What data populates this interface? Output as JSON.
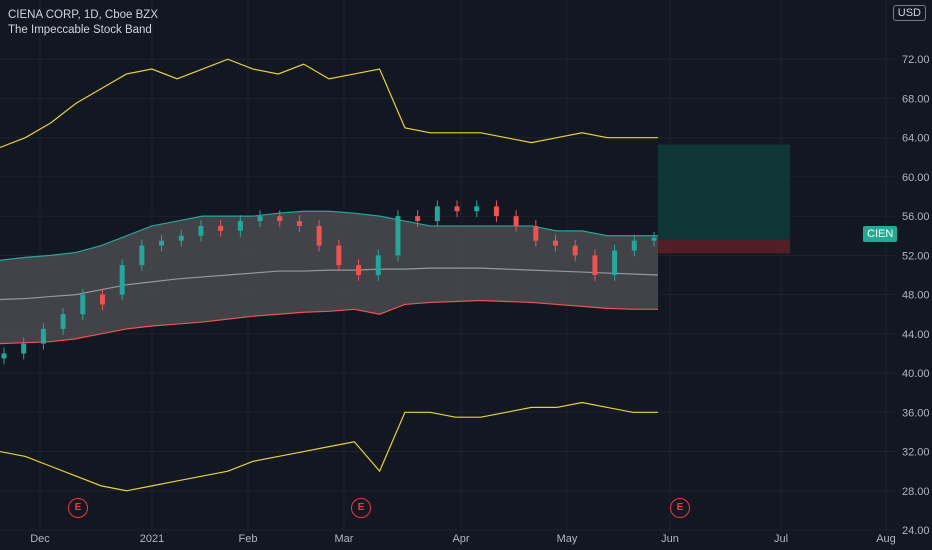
{
  "header": {
    "symbol_line": "CIENA CORP, 1D, Cboe BZX",
    "indicator_name": "The Impeccable Stock Band"
  },
  "currency": "USD",
  "price_tag": "CIEN",
  "earnings_marker": "E",
  "colors": {
    "background": "#131722",
    "up": "#26a69a",
    "down": "#ef5350",
    "band_fill": "#4a4b50",
    "outer_band": "#e6d23a",
    "upper_band": "#26a69a",
    "lower_band": "#ef5350",
    "mid_line": "#9598a1",
    "target_zone": "#0f3a3a",
    "stop_zone": "#5a1f26"
  },
  "chart_data": {
    "type": "line",
    "title": "",
    "y_ticks": [
      "24.00",
      "28.00",
      "32.00",
      "36.00",
      "40.00",
      "44.00",
      "48.00",
      "52.00",
      "56.00",
      "60.00",
      "64.00",
      "68.00",
      "72.00"
    ],
    "ylim": [
      24,
      76
    ],
    "x_ticks": [
      "Dec",
      "2021",
      "Feb",
      "Mar",
      "Apr",
      "May",
      "Jun",
      "Jul",
      "Aug"
    ],
    "x": [
      "Nov 23",
      "Dec 1",
      "Dec 8",
      "Dec 15",
      "Dec 22",
      "Dec 29",
      "Jan 6",
      "Jan 13",
      "Jan 20",
      "Jan 27",
      "Feb 3",
      "Feb 10",
      "Feb 17",
      "Feb 24",
      "Mar 3",
      "Mar 10",
      "Mar 17",
      "Mar 24",
      "Mar 31",
      "Apr 7",
      "Apr 14",
      "Apr 21",
      "Apr 28",
      "May 5",
      "May 12",
      "May 19",
      "May 27"
    ],
    "series": [
      {
        "values": [
          63.0,
          64.0,
          65.5,
          67.5,
          69.0,
          70.5,
          71.0,
          70.0,
          71.0,
          72.0,
          71.0,
          70.5,
          71.5,
          70.0,
          70.5,
          71.0,
          65.0,
          64.5,
          64.5,
          64.5,
          64.0,
          63.5,
          64.0,
          64.5,
          64.0,
          64.0,
          64.0
        ]
      },
      {
        "values": [
          51.5,
          51.8,
          52.0,
          52.3,
          53.0,
          54.0,
          55.0,
          55.5,
          56.0,
          56.0,
          56.0,
          56.3,
          56.5,
          56.5,
          56.3,
          56.0,
          55.5,
          55.0,
          55.0,
          55.0,
          55.0,
          55.0,
          54.5,
          54.5,
          54.0,
          54.0,
          54.0
        ]
      },
      {
        "values": [
          47.5,
          47.6,
          47.8,
          48.0,
          48.5,
          49.0,
          49.3,
          49.6,
          49.8,
          50.0,
          50.2,
          50.4,
          50.4,
          50.5,
          50.5,
          50.6,
          50.6,
          50.7,
          50.7,
          50.7,
          50.6,
          50.5,
          50.4,
          50.3,
          50.2,
          50.1,
          50.0
        ]
      },
      {
        "values": [
          43.0,
          43.1,
          43.2,
          43.5,
          44.0,
          44.5,
          44.8,
          45.0,
          45.2,
          45.5,
          45.8,
          46.0,
          46.2,
          46.3,
          46.5,
          46.0,
          47.0,
          47.2,
          47.3,
          47.4,
          47.3,
          47.2,
          47.0,
          46.8,
          46.6,
          46.5,
          46.5
        ]
      },
      {
        "values": [
          32.0,
          31.5,
          30.5,
          29.5,
          28.5,
          28.0,
          28.5,
          29.0,
          29.5,
          30.0,
          31.0,
          31.5,
          32.0,
          32.5,
          33.0,
          30.0,
          36.0,
          36.0,
          35.5,
          35.5,
          36.0,
          36.5,
          36.5,
          37.0,
          36.5,
          36.0,
          36.0
        ]
      }
    ],
    "candles_close": [
      42.0,
      43.0,
      44.5,
      46.0,
      48.0,
      47.0,
      51.0,
      53.0,
      53.5,
      54.0,
      55.0,
      54.5,
      55.5,
      56.0,
      55.5,
      55.0,
      53.0,
      51.0,
      50.0,
      52.0,
      56.0,
      55.5,
      57.0,
      56.5,
      57.0,
      56.0,
      55.0,
      53.5,
      53.0,
      52.0,
      50.0,
      52.5,
      53.5,
      53.8
    ],
    "candles_open": [
      41.5,
      42.0,
      43.0,
      44.5,
      46.0,
      48.0,
      48.0,
      51.0,
      53.0,
      53.5,
      54.0,
      55.0,
      54.5,
      55.5,
      56.0,
      55.5,
      55.0,
      53.0,
      51.0,
      50.0,
      52.0,
      56.0,
      55.5,
      57.0,
      56.5,
      57.0,
      56.0,
      55.0,
      53.5,
      53.0,
      52.0,
      50.0,
      52.5,
      53.5
    ],
    "trade_setup": {
      "entry": 53.6,
      "target": 63.3,
      "stop": 52.2
    }
  }
}
